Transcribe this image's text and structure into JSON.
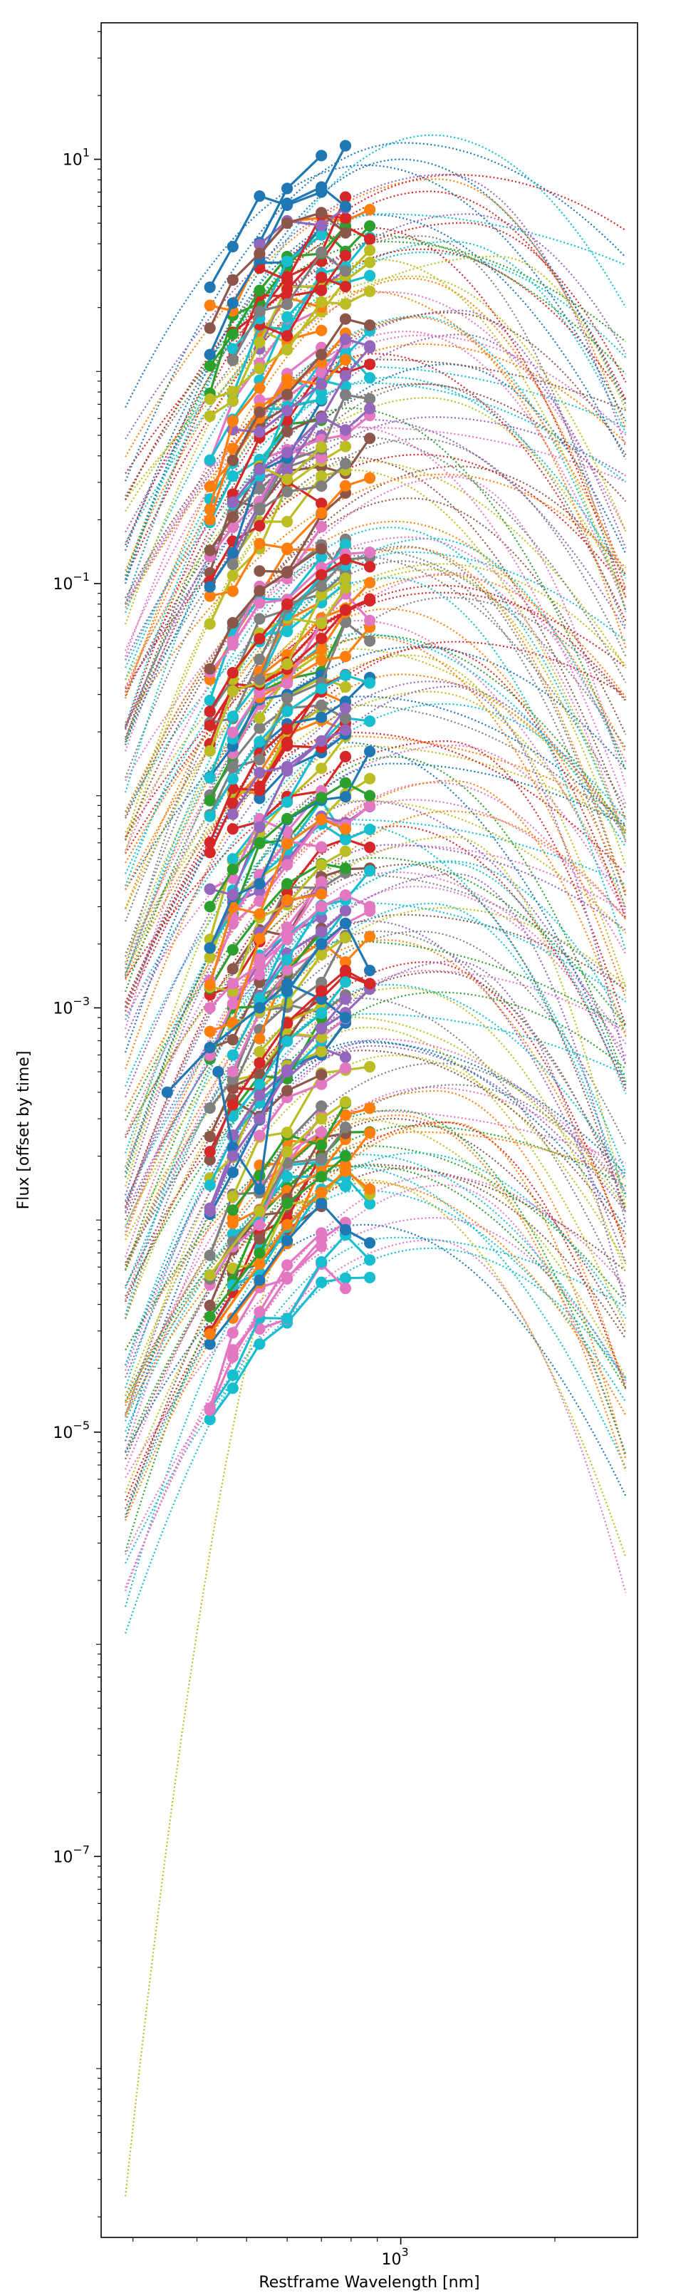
{
  "chart_data": {
    "type": "line",
    "title": "",
    "xlabel": "Restframe Wavelength [nm]",
    "ylabel": "Flux [offset by time]",
    "xscale": "log",
    "yscale": "log",
    "xlim": [
      260,
      2900
    ],
    "ylim": [
      1.6e-09,
      44
    ],
    "x_ticks": [
      {
        "value": 1000,
        "label": "10",
        "exp": "3"
      }
    ],
    "y_ticks": [
      {
        "value": 10,
        "label": "10",
        "exp": "1"
      },
      {
        "value": 0.1,
        "label": "10",
        "exp": "−1"
      },
      {
        "value": 0.001,
        "label": "10",
        "exp": "−3"
      },
      {
        "value": 1e-05,
        "label": "10",
        "exp": "−5"
      },
      {
        "value": 1e-07,
        "label": "10",
        "exp": "−7"
      }
    ],
    "grid": false,
    "legend": "none",
    "palette": [
      "#1f77b4",
      "#ff7f0e",
      "#2ca02c",
      "#d62728",
      "#9467bd",
      "#8c564b",
      "#e377c2",
      "#7f7f7f",
      "#bcbd22",
      "#17becf"
    ],
    "observed_bands_nm": [
      424,
      470,
      530,
      600,
      700,
      780,
      870
    ],
    "fit_curve_range_nm": [
      290,
      2750
    ],
    "series_count": 170,
    "series": [
      {
        "kind": "observed",
        "color": "#1f77b4",
        "x": [
          424,
          530,
          600,
          700,
          780,
          870
        ],
        "y": [
          2.6e-05,
          5.2e-05,
          8e-05,
          0.00012,
          9e-05,
          7.8e-05
        ]
      },
      {
        "kind": "fit",
        "color": "#1f77b4",
        "peak_x": 850,
        "peak_y": 9.5e-05,
        "x_start": 290,
        "x_end": 2750,
        "y_start": 8e-06,
        "y_end": 5e-06
      },
      {
        "kind": "observed",
        "color": "#ff7f0e",
        "x": [
          424,
          530,
          600,
          700,
          780,
          870
        ],
        "y": [
          2.9e-05,
          6.2e-05,
          9.5e-05,
          0.000135,
          0.00017,
          0.00014
        ]
      },
      {
        "kind": "fit",
        "color": "#ff7f0e",
        "peak_x": 870,
        "peak_y": 0.00015,
        "x_start": 290,
        "x_end": 2750,
        "y_start": 1.2e-05,
        "y_end": 1.2e-05
      },
      {
        "kind": "observed",
        "color": "#2ca02c",
        "x": [
          424,
          530,
          600,
          700,
          780
        ],
        "y": [
          3.5e-05,
          7e-05,
          0.00012,
          0.00016,
          0.0002
        ]
      },
      {
        "kind": "fit",
        "color": "#2ca02c",
        "peak_x": 860,
        "peak_y": 0.00018,
        "x_start": 290,
        "x_end": 2750,
        "y_start": 1.4e-05,
        "y_end": 1.6e-05
      },
      {
        "kind": "observed",
        "color": "#bcbd22",
        "x": [
          424,
          530,
          600,
          700,
          780
        ],
        "y": [
          5.5e-05,
          0.00011,
          0.00021,
          0.0003,
          0.00036
        ]
      },
      {
        "kind": "fit",
        "color": "#bcbd22",
        "peak_x": 820,
        "peak_y": 0.0003,
        "x_start": 290,
        "x_end": 2750,
        "y_start": 2.5e-09,
        "y_end": 1.8e-05
      },
      {
        "kind": "observed",
        "color": "#1f77b4",
        "x": [
          350,
          424,
          530,
          600,
          700,
          780
        ],
        "y": [
          0.0004,
          0.00065,
          0.001,
          0.0013,
          0.0011,
          0.0009
        ]
      },
      {
        "kind": "observed",
        "color": "#d62728",
        "x": [
          424,
          470,
          530,
          600,
          700,
          780,
          870
        ],
        "y": [
          0.00021,
          0.00035,
          0.00055,
          0.00085,
          0.0012,
          0.0015,
          0.0013
        ]
      },
      {
        "kind": "observed",
        "color": "#1f77b4",
        "x": [
          440,
          470,
          530,
          600,
          700,
          780,
          870
        ],
        "y": [
          0.0005,
          0.00022,
          0.00014,
          0.0012,
          0.002,
          0.0025,
          0.0015
        ]
      },
      {
        "kind": "observed",
        "color": "#9467bd",
        "x": [
          424,
          470,
          530,
          600,
          700,
          780
        ],
        "y": [
          0.00011,
          0.0002,
          0.0003,
          0.0005,
          0.0008,
          0.0011
        ]
      },
      {
        "kind": "observed",
        "color": "#e377c2",
        "x": [
          424,
          470,
          530,
          600,
          700,
          780,
          870
        ],
        "y": [
          0.001,
          0.0013,
          0.0016,
          0.0021,
          0.003,
          0.0034,
          0.003
        ]
      },
      {
        "kind": "observed",
        "color": "#2ca02c",
        "x": [
          424,
          470,
          530,
          600,
          700,
          780,
          870
        ],
        "y": [
          0.003,
          0.0045,
          0.006,
          0.0078,
          0.0098,
          0.0115,
          0.01
        ]
      },
      {
        "kind": "observed",
        "color": "#17becf",
        "x": [
          424,
          470,
          530,
          600,
          700,
          780,
          870
        ],
        "y": [
          0.008,
          0.012,
          0.018,
          0.025,
          0.032,
          0.037,
          0.034
        ]
      },
      {
        "kind": "observed",
        "color": "#d62728",
        "x": [
          424,
          470,
          530,
          600,
          700,
          780,
          870
        ],
        "y": [
          0.025,
          0.038,
          0.055,
          0.08,
          0.11,
          0.13,
          0.12
        ]
      },
      {
        "kind": "observed",
        "color": "#1f77b4",
        "x": [
          424,
          470,
          530,
          600,
          700,
          780
        ],
        "y": [
          1.2,
          2.1,
          3.4,
          6.2,
          7.4,
          6
        ]
      },
      {
        "kind": "observed",
        "color": "#8c564b",
        "x": [
          424,
          470,
          530,
          600,
          700,
          780
        ],
        "y": [
          1.6,
          2.7,
          3.6,
          5,
          5.6,
          4.5
        ]
      },
      {
        "kind": "fit",
        "color": "#17becf",
        "peak_x": 1150,
        "peak_y": 13,
        "x_start": 290,
        "x_end": 2750,
        "y_start": 0.08,
        "y_end": 2
      },
      {
        "kind": "fit",
        "color": "#1f77b4",
        "peak_x": 1000,
        "peak_y": 10,
        "x_start": 290,
        "x_end": 2750,
        "y_start": 0.1,
        "y_end": 0.7
      }
    ]
  }
}
